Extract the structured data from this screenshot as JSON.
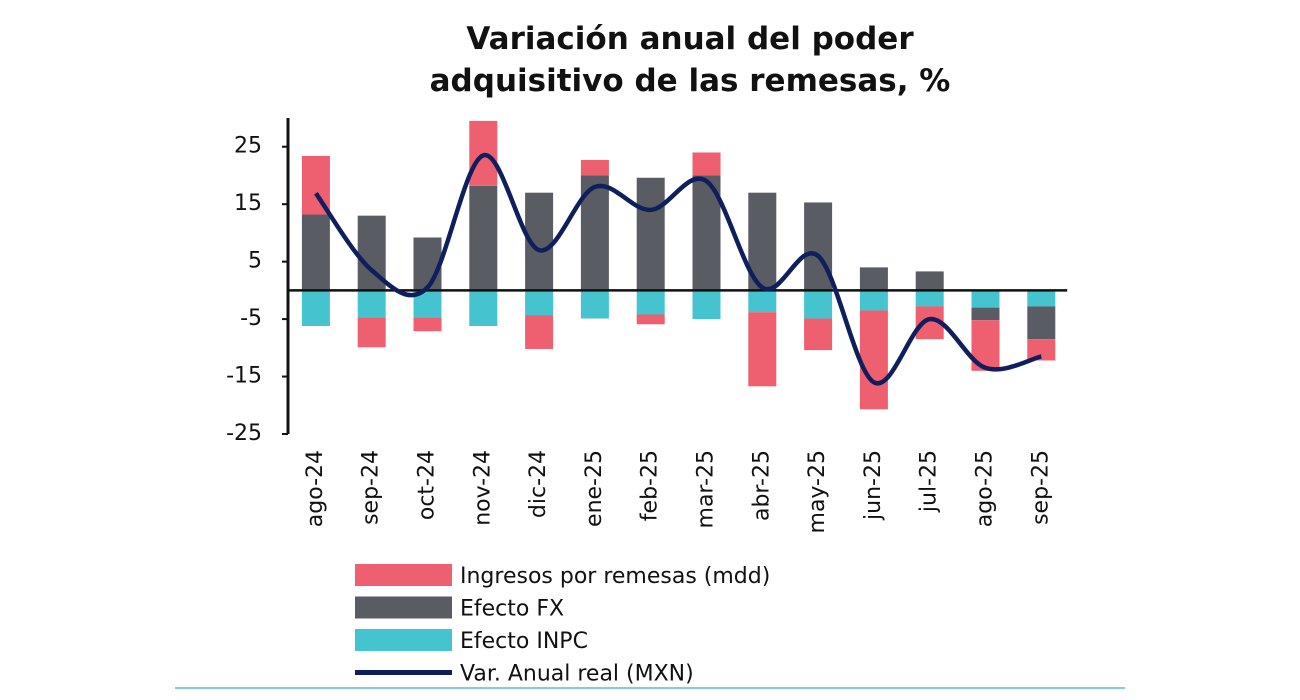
{
  "chart_data": {
    "type": "bar",
    "stacked": true,
    "title": "Variación anual del poder adquisitivo de las remesas, %",
    "categories": [
      "ago-24",
      "sep-24",
      "oct-24",
      "nov-24",
      "dic-24",
      "ene-25",
      "feb-25",
      "mar-25",
      "abr-25",
      "may-25",
      "jun-25",
      "jul-25",
      "ago-25",
      "sep-25"
    ],
    "series": [
      {
        "name": "Ingresos por remesas (mdd)",
        "type": "bar",
        "color": "#ee5f6f",
        "values": [
          10.2,
          -5.2,
          -2.4,
          11.3,
          -5.9,
          2.7,
          -1.7,
          4,
          -12.9,
          -5.5,
          -17.2,
          -5.7,
          -8.8,
          -3.7
        ]
      },
      {
        "name": "Efecto FX",
        "type": "bar",
        "color": "#5a5c63",
        "values": [
          13.2,
          13,
          9.2,
          18.2,
          17,
          20,
          19.6,
          20,
          17,
          15.3,
          4,
          3.3,
          -2.2,
          -5.7
        ]
      },
      {
        "name": "Efecto INPC",
        "type": "bar",
        "color": "#45c4d0",
        "values": [
          -6.2,
          -4.7,
          -4.7,
          -6.2,
          -4.3,
          -4.9,
          -4.2,
          -5,
          -3.8,
          -4.9,
          -3.5,
          -2.8,
          -3,
          -2.8
        ]
      },
      {
        "name": "Var. Anual real (MXN)",
        "type": "line",
        "color": "#0f1f5c",
        "values": [
          16.9,
          3.5,
          0.5,
          23.5,
          7,
          18,
          14,
          19,
          0.5,
          6,
          -16,
          -5,
          -13.5,
          -11.5
        ]
      }
    ],
    "ylim": [
      -25,
      30
    ],
    "yticks": [
      -25,
      -15,
      -5,
      5,
      15,
      25
    ]
  }
}
